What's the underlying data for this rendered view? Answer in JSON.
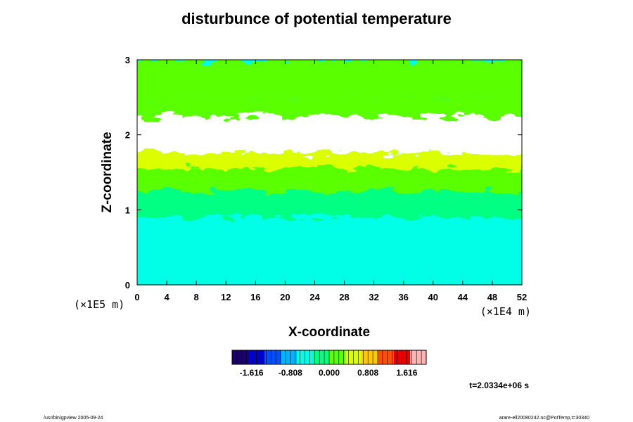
{
  "chart_data": {
    "type": "heatmap",
    "title": "disturbunce of potential temperature",
    "xlabel": "X-coordinate",
    "ylabel": "Z-coordinate",
    "x_unit": "(×1E4 m)",
    "y_unit": "(×1E5 m)",
    "xlim": [
      0,
      52
    ],
    "ylim": [
      0,
      3
    ],
    "x_ticks": [
      "0",
      "4",
      "8",
      "12",
      "16",
      "20",
      "24",
      "28",
      "32",
      "36",
      "40",
      "44",
      "48",
      "52"
    ],
    "y_ticks": [
      "0",
      "1",
      "2",
      "3"
    ],
    "colorbar": {
      "min": -2.02,
      "max": 2.02,
      "ticks": [
        "-1.616",
        "-0.808",
        "0.000",
        "0.808",
        "1.616"
      ],
      "colors": [
        "#1a006e",
        "#0000c8",
        "#0050ff",
        "#00b4ff",
        "#00ffe6",
        "#00ff82",
        "#5aff00",
        "#dcff00",
        "#ffc800",
        "#ff5000",
        "#e60000",
        "#ffb4b4"
      ]
    },
    "layers": [
      {
        "z": [
          0.0,
          0.9
        ],
        "level": -0.65
      },
      {
        "z": [
          0.9,
          1.25
        ],
        "level": -0.25
      },
      {
        "z": [
          1.25,
          1.55
        ],
        "level": 0.15
      },
      {
        "z": [
          1.55,
          1.75
        ],
        "level": 0.5
      },
      {
        "z": [
          1.75,
          2.25
        ],
        "level": "out-of-range"
      },
      {
        "z": [
          2.25,
          2.5
        ],
        "level": 0.3
      },
      {
        "z": [
          2.5,
          3.0
        ],
        "level": 0.1
      }
    ],
    "time_label": "t=2.0334e+06 s"
  },
  "footer": {
    "left": "/usr/bin/gpview 2005-09-24",
    "right": "arare-ell20080242.nc@PotTemp,t=30340"
  }
}
